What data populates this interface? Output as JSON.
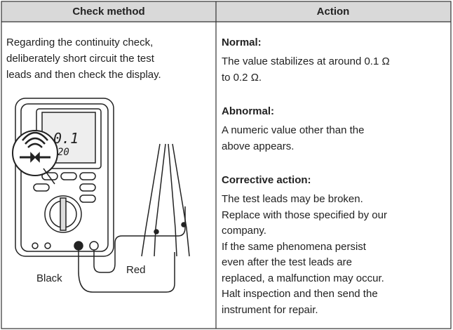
{
  "table": {
    "header": [
      "Check method",
      "Action"
    ],
    "check_method": [
      "Regarding the continuity check,",
      "deliberately short circuit the test",
      "leads and then check the display."
    ],
    "illustration": {
      "display_main": "0.1",
      "display_sub": "20",
      "labels": [
        "Black",
        "Red"
      ]
    },
    "action": [
      {
        "heading": "Normal:",
        "lines": [
          "The value stabilizes at around 0.1 Ω",
          "to 0.2 Ω."
        ]
      },
      {
        "heading": "Abnormal:",
        "lines": [
          "A numeric value other than the",
          "above appears."
        ]
      },
      {
        "heading": "Corrective action:",
        "lines": [
          "The test leads may be broken.",
          "Replace with those specified by our",
          "company.",
          "If the same phenomena persist",
          "even after the test leads are",
          "replaced, a malfunction may occur.",
          "Halt inspection and then send the",
          "instrument for repair."
        ]
      }
    ]
  }
}
